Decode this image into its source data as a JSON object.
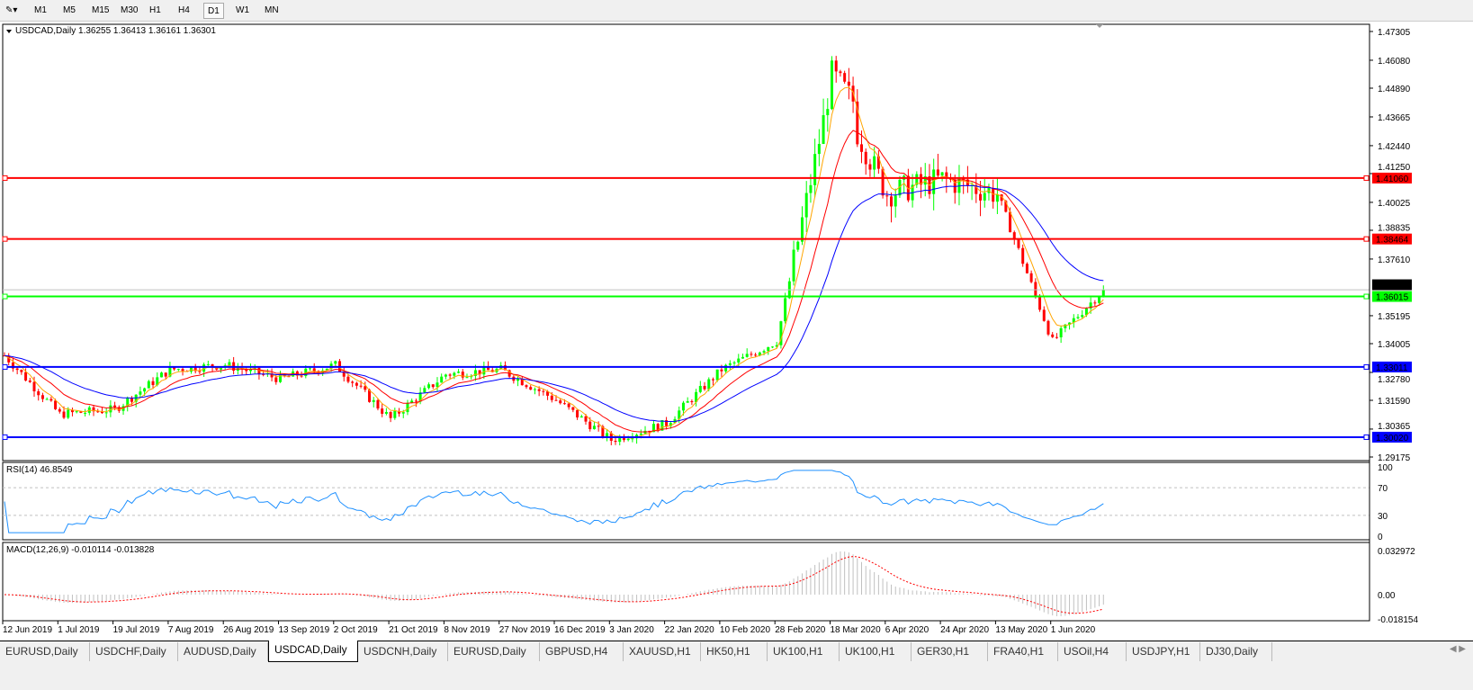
{
  "toolbar": {
    "periods": [
      "M1",
      "M5",
      "M15",
      "M30",
      "H1",
      "H4",
      "D1",
      "W1",
      "MN"
    ],
    "active": "D1"
  },
  "chart_info": {
    "symbol_label": "USDCAD,Daily",
    "ohlc": "1.36255 1.36413 1.36161 1.36301"
  },
  "rsi": {
    "label": "RSI(14) 46.8549",
    "axis": [
      "100",
      "70",
      "30",
      "0"
    ]
  },
  "macd": {
    "label": "MACD(12,26,9) -0.010114 -0.013828",
    "axis": [
      "0.032972",
      "0.00",
      "-0.018154"
    ]
  },
  "colors": {
    "bull": "#00ff00",
    "bear": "#ff0000",
    "ma_fast": "#ffa500",
    "ma_mid": "#ff0000",
    "ma_slow": "#0000ff",
    "rsi": "#1e90ff",
    "macd_signal": "#ff0000",
    "macd_hist": "#c0c0c0"
  },
  "chart_data": {
    "type": "candlestick",
    "symbol": "USDCAD",
    "timeframe": "Daily",
    "ylim": [
      1.29175,
      1.47305
    ],
    "price_ticks": [
      "1.47305",
      "1.46080",
      "1.44890",
      "1.43665",
      "1.42440",
      "1.41250",
      "1.40025",
      "1.38835",
      "1.37610",
      "1.35195",
      "1.34005",
      "1.32780",
      "1.31590",
      "1.30365",
      "1.29175"
    ],
    "date_ticks": [
      "12 Jun 2019",
      "1 Jul 2019",
      "19 Jul 2019",
      "7 Aug 2019",
      "26 Aug 2019",
      "13 Sep 2019",
      "2 Oct 2019",
      "21 Oct 2019",
      "8 Nov 2019",
      "27 Nov 2019",
      "16 Dec 2019",
      "3 Jan 2020",
      "22 Jan 2020",
      "10 Feb 2020",
      "28 Feb 2020",
      "18 Mar 2020",
      "6 Apr 2020",
      "24 Apr 2020",
      "13 May 2020",
      "1 Jun 2020"
    ],
    "approx_closes": [
      {
        "date": "12 Jun 2019",
        "close": 1.335
      },
      {
        "date": "1 Jul 2019",
        "close": 1.31
      },
      {
        "date": "19 Jul 2019",
        "close": 1.312
      },
      {
        "date": "7 Aug 2019",
        "close": 1.329
      },
      {
        "date": "26 Aug 2019",
        "close": 1.331
      },
      {
        "date": "13 Sep 2019",
        "close": 1.325
      },
      {
        "date": "2 Oct 2019",
        "close": 1.331
      },
      {
        "date": "21 Oct 2019",
        "close": 1.308
      },
      {
        "date": "8 Nov 2019",
        "close": 1.327
      },
      {
        "date": "27 Nov 2019",
        "close": 1.329
      },
      {
        "date": "16 Dec 2019",
        "close": 1.316
      },
      {
        "date": "3 Jan 2020",
        "close": 1.299
      },
      {
        "date": "22 Jan 2020",
        "close": 1.306
      },
      {
        "date": "10 Feb 2020",
        "close": 1.329
      },
      {
        "date": "28 Feb 2020",
        "close": 1.341
      },
      {
        "date": "18 Mar 2020",
        "close": 1.452
      },
      {
        "date": "6 Apr 2020",
        "close": 1.404
      },
      {
        "date": "24 Apr 2020",
        "close": 1.41
      },
      {
        "date": "13 May 2020",
        "close": 1.404
      },
      {
        "date": "1 Jun 2020",
        "close": 1.341
      },
      {
        "date": "12 Jun 2020",
        "close": 1.36301
      }
    ],
    "horizontal_lines": [
      {
        "label": "1.41060",
        "value": 1.4106,
        "color": "#ff0000"
      },
      {
        "label": "1.38464",
        "value": 1.38464,
        "color": "#ff0000"
      },
      {
        "label": "1.36015",
        "value": 1.36015,
        "color": "#00ff00"
      },
      {
        "label": "1.33011",
        "value": 1.33011,
        "color": "#0000ff"
      },
      {
        "label": "1.30020",
        "value": 1.3002,
        "color": "#0000ff"
      }
    ],
    "current_price": {
      "label": "1.36301",
      "value": 1.36301
    },
    "moving_averages": [
      "fast (orange)",
      "mid (red)",
      "slow (blue)"
    ]
  },
  "tabs": [
    "EURUSD,Daily",
    "USDCHF,Daily",
    "AUDUSD,Daily",
    "USDCAD,Daily",
    "USDCNH,Daily",
    "EURUSD,Daily",
    "GBPUSD,H4",
    "XAUUSD,H1",
    "HK50,H1",
    "UK100,H1",
    "UK100,H1",
    "GER30,H1",
    "FRA40,H1",
    "USOil,H4",
    "USDJPY,H1",
    "DJ30,Daily"
  ],
  "active_tab": "USDCAD,Daily"
}
